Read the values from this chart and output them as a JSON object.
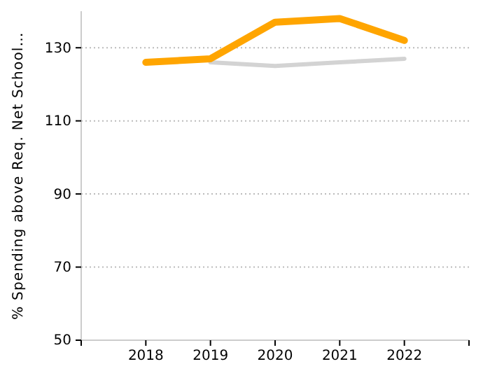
{
  "chart_data": {
    "type": "line",
    "ylabel": "% Spending above Req. Net School…",
    "x": [
      2018,
      2019,
      2020,
      2021,
      2022
    ],
    "xlim": [
      2017,
      2023
    ],
    "xticks": [
      {
        "value": 2017,
        "label": null
      },
      2018,
      2019,
      2020,
      2021,
      2022,
      {
        "value": 2023,
        "label": null
      }
    ],
    "ylim": [
      50,
      140
    ],
    "yticks": [
      50,
      70,
      90,
      110,
      130
    ],
    "grid": "y",
    "marker": "none",
    "line_style": "solid",
    "series": [
      {
        "color": "#d3d3d3",
        "values": [
          null,
          126,
          125,
          126,
          127
        ]
      },
      {
        "color": "#ffa500",
        "values": [
          126,
          127,
          137,
          138,
          132
        ]
      }
    ]
  }
}
